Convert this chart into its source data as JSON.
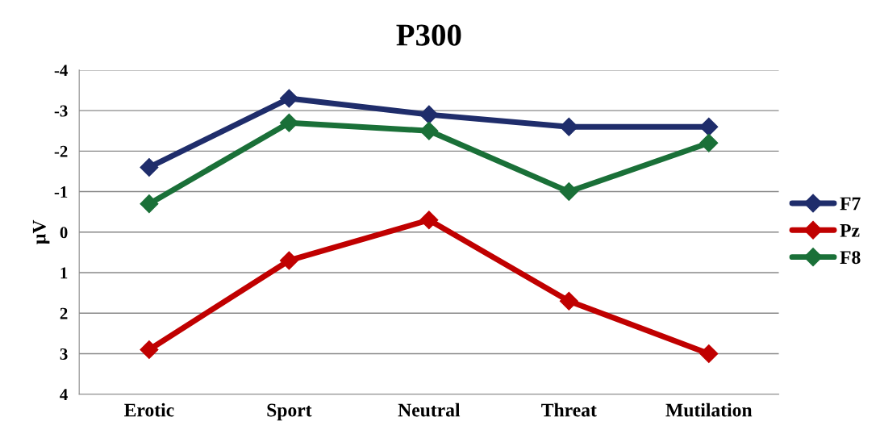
{
  "chart_data": {
    "type": "line",
    "title": "P300",
    "ylabel": "µV",
    "categories": [
      "Erotic",
      "Sport",
      "Neutral",
      "Threat",
      "Mutilation"
    ],
    "series": [
      {
        "name": "F7",
        "color": "#1f2d6b",
        "values": [
          -1.6,
          -3.3,
          -2.9,
          -2.6,
          -2.6
        ]
      },
      {
        "name": "Pz",
        "color": "#c00000",
        "values": [
          2.9,
          0.7,
          -0.3,
          1.7,
          3.0
        ]
      },
      {
        "name": "F8",
        "color": "#1a7038",
        "values": [
          -0.7,
          -2.7,
          -2.5,
          -1.0,
          -2.2
        ]
      }
    ],
    "ylim": [
      4,
      -4
    ],
    "yticks": [
      -4,
      -3,
      -2,
      -1,
      0,
      1,
      2,
      3,
      4
    ],
    "grid": "y",
    "legend": "right",
    "marker": "diamond",
    "line_style": "solid"
  }
}
